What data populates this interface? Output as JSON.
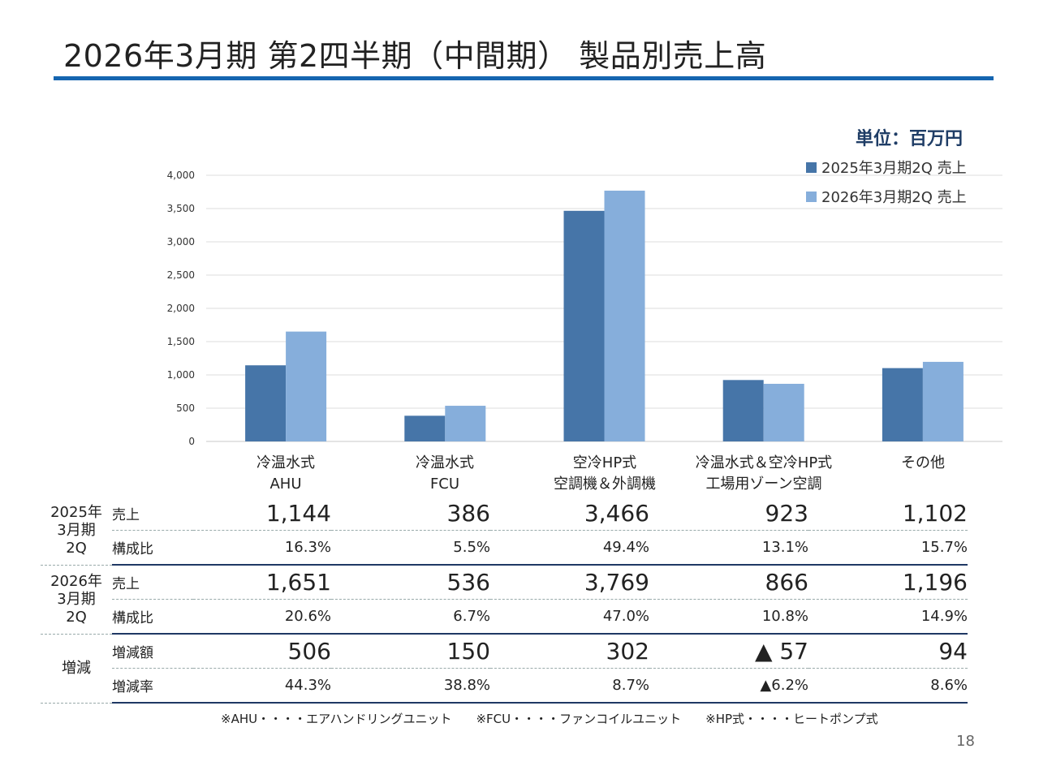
{
  "title": "2026年3月期 第2四半期（中間期） 製品別売上高",
  "unit": "単位：百万円",
  "legend": [
    {
      "label": "2025年3月期2Q 売上",
      "color": "#4675a8"
    },
    {
      "label": "2026年3月期2Q 売上",
      "color": "#86aedb"
    }
  ],
  "chart_data": {
    "type": "bar",
    "categories": [
      "冷温水式 AHU",
      "冷温水式 FCU",
      "空冷HP式 空調機＆外調機",
      "冷温水式＆空冷HP式 工場用ゾーン空調",
      "その他"
    ],
    "category_lines": [
      [
        "冷温水式",
        "AHU"
      ],
      [
        "冷温水式",
        "FCU"
      ],
      [
        "空冷HP式",
        "空調機＆外調機"
      ],
      [
        "冷温水式＆空冷HP式",
        "工場用ゾーン空調"
      ],
      [
        "その他",
        ""
      ]
    ],
    "series": [
      {
        "name": "2025年3月期2Q 売上",
        "values": [
          1144,
          386,
          3466,
          923,
          1102
        ]
      },
      {
        "name": "2026年3月期2Q 売上",
        "values": [
          1651,
          536,
          3769,
          866,
          1196
        ]
      }
    ],
    "ylim": [
      0,
      4000
    ],
    "yticks": [
      0,
      500,
      1000,
      1500,
      2000,
      2500,
      3000,
      3500,
      4000
    ],
    "ytick_labels": [
      "0",
      "500",
      "1,000",
      "1,500",
      "2,000",
      "2,500",
      "3,000",
      "3,500",
      "4,000"
    ],
    "grid": true,
    "legend_position": "top-right"
  },
  "table": {
    "group_2025": "2025年\n3月期\n2Q",
    "group_2026": "2026年\n3月期\n2Q",
    "group_change": "増減",
    "label_sales": "売上",
    "label_ratio": "構成比",
    "label_diff": "増減額",
    "label_rate": "増減率",
    "sales_2025": [
      "1,144",
      "386",
      "3,466",
      "923",
      "1,102"
    ],
    "ratio_2025": [
      "16.3%",
      "5.5%",
      "49.4%",
      "13.1%",
      "15.7%"
    ],
    "sales_2026": [
      "1,651",
      "536",
      "3,769",
      "866",
      "1,196"
    ],
    "ratio_2026": [
      "20.6%",
      "6.7%",
      "47.0%",
      "10.8%",
      "14.9%"
    ],
    "diff": [
      "506",
      "150",
      "302",
      "▲ 57",
      "94"
    ],
    "rate": [
      "44.3%",
      "38.8%",
      "8.7%",
      "▲6.2%",
      "8.6%"
    ]
  },
  "note": "※AHU・・・・エアハンドリングユニット　　※FCU・・・・ファンコイルユニット　　※HP式・・・・ヒートポンプ式",
  "page_number": "18"
}
